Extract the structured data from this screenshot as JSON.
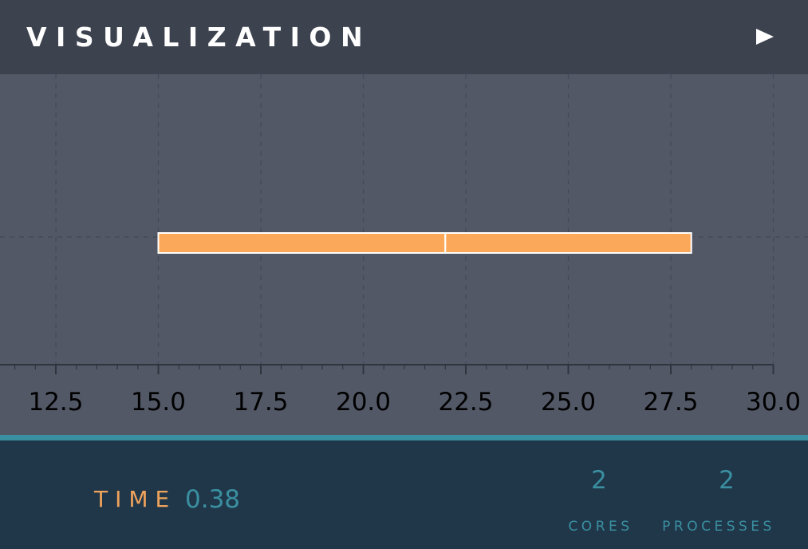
{
  "header": {
    "title": "VISUALIZATION",
    "play_icon": "play-icon"
  },
  "chart_data": {
    "type": "timeline",
    "title": "",
    "xlabel": "",
    "ylabel": "",
    "xlim": [
      11.0,
      30.0
    ],
    "x_ticks": [
      12.5,
      15.0,
      17.5,
      20.0,
      22.5,
      25.0,
      27.5,
      30.0
    ],
    "x_tick_labels": [
      "12.5",
      "15.0",
      "17.5",
      "20.0",
      "22.5",
      "25.0",
      "27.5",
      "30.0"
    ],
    "grid": true,
    "segments": [
      {
        "start": 15.0,
        "end": 22.0,
        "color": "#fca85a"
      },
      {
        "start": 22.0,
        "end": 28.0,
        "color": "#fca85a"
      }
    ]
  },
  "footer": {
    "time_label": "TIME",
    "time_value": "0.38",
    "cores_value": "2",
    "cores_label": "CORES",
    "processes_value": "2",
    "processes_label": "PROCESSES"
  },
  "colors": {
    "header_bg": "#3c424e",
    "chart_bg": "#525866",
    "accent": "#3a8fa0",
    "footer_bg": "#20374a",
    "orange": "#f0a35b"
  }
}
